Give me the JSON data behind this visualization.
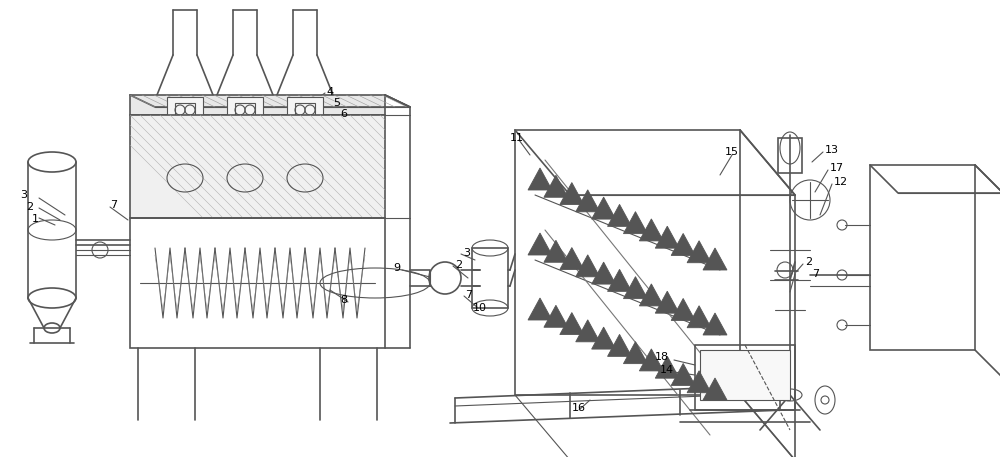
{
  "bg_color": "#ffffff",
  "line_color": "#555555",
  "label_color": "#000000",
  "fig_width": 10.0,
  "fig_height": 4.57,
  "dpi": 100
}
